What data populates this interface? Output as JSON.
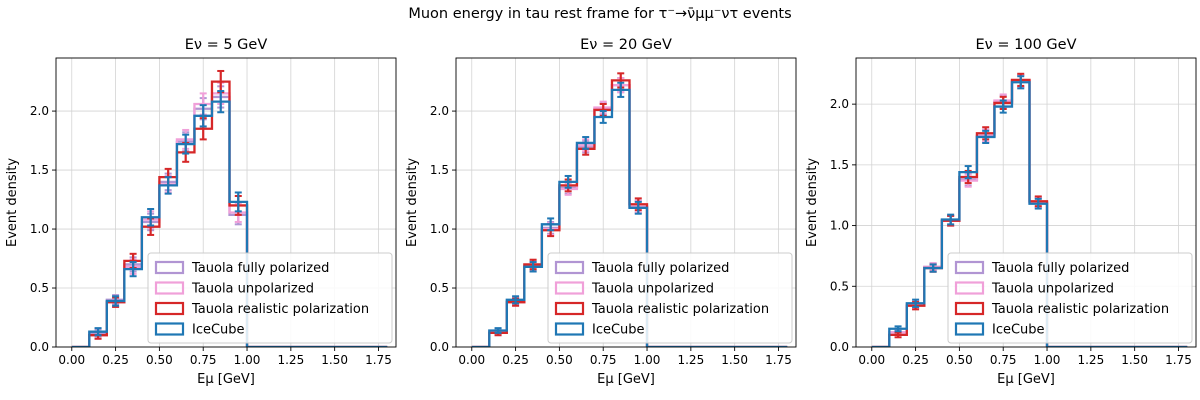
{
  "figure": {
    "suptitle": "Muon energy in tau rest frame for τ⁻→ν̄μμ⁻ντ events"
  },
  "chart_data": [
    {
      "type": "histogram",
      "title": "Eν = 5 GeV",
      "xlabel": "Eμ [GeV]",
      "ylabel": "Event density",
      "xlim": [
        -0.09,
        1.85
      ],
      "ylim": [
        0,
        2.45
      ],
      "xticks": [
        "0.00",
        "0.25",
        "0.50",
        "0.75",
        "1.00",
        "1.25",
        "1.50",
        "1.75"
      ],
      "yticks": [
        "0.0",
        "0.5",
        "1.0",
        "1.5",
        "2.0"
      ],
      "grid": true,
      "legend_position": "lower-right",
      "bin_edges": [
        0.0,
        0.1,
        0.2,
        0.3,
        0.4,
        0.5,
        0.6,
        0.7,
        0.8,
        0.9,
        1.0,
        1.1,
        1.2,
        1.3,
        1.4,
        1.5,
        1.6,
        1.7,
        1.8
      ],
      "series": [
        {
          "name": "Tauola fully polarized",
          "color": "#b195d3",
          "values": [
            0,
            0.12,
            0.4,
            0.7,
            1.06,
            1.4,
            1.74,
            2.02,
            2.12,
            1.12,
            0,
            0,
            0,
            0,
            0,
            0,
            0,
            0
          ],
          "errors": [
            0,
            0.03,
            0.04,
            0.06,
            0.07,
            0.07,
            0.08,
            0.09,
            0.09,
            0.08,
            0,
            0,
            0,
            0,
            0,
            0,
            0,
            0
          ]
        },
        {
          "name": "Tauola unpolarized",
          "color": "#f0a0d9",
          "values": [
            0,
            0.1,
            0.38,
            0.68,
            1.08,
            1.38,
            1.76,
            2.06,
            2.15,
            1.14,
            0,
            0,
            0,
            0,
            0,
            0,
            0,
            0
          ],
          "errors": [
            0,
            0.03,
            0.04,
            0.06,
            0.07,
            0.07,
            0.08,
            0.09,
            0.09,
            0.08,
            0,
            0,
            0,
            0,
            0,
            0,
            0,
            0
          ]
        },
        {
          "name": "Tauola realistic polarization",
          "color": "#d62728",
          "values": [
            0,
            0.1,
            0.38,
            0.73,
            1.02,
            1.44,
            1.65,
            1.85,
            2.25,
            1.2,
            0,
            0,
            0,
            0,
            0,
            0,
            0,
            0
          ],
          "errors": [
            0,
            0.03,
            0.04,
            0.06,
            0.07,
            0.07,
            0.08,
            0.09,
            0.09,
            0.08,
            0,
            0,
            0,
            0,
            0,
            0,
            0,
            0
          ]
        },
        {
          "name": "IceCube",
          "color": "#1f77b4",
          "values": [
            0,
            0.13,
            0.39,
            0.66,
            1.1,
            1.37,
            1.72,
            1.96,
            2.08,
            1.23,
            0,
            0,
            0,
            0,
            0,
            0,
            0,
            0
          ],
          "errors": [
            0,
            0.03,
            0.04,
            0.06,
            0.07,
            0.07,
            0.08,
            0.09,
            0.09,
            0.08,
            0,
            0,
            0,
            0,
            0,
            0,
            0,
            0
          ]
        }
      ]
    },
    {
      "type": "histogram",
      "title": "Eν = 20 GeV",
      "xlabel": "Eμ [GeV]",
      "ylabel": "Event density",
      "xlim": [
        -0.09,
        1.85
      ],
      "ylim": [
        0,
        2.45
      ],
      "xticks": [
        "0.00",
        "0.25",
        "0.50",
        "0.75",
        "1.00",
        "1.25",
        "1.50",
        "1.75"
      ],
      "yticks": [
        "0.0",
        "0.5",
        "1.0",
        "1.5",
        "2.0"
      ],
      "grid": true,
      "legend_position": "lower-right",
      "bin_edges": [
        0.0,
        0.1,
        0.2,
        0.3,
        0.4,
        0.5,
        0.6,
        0.7,
        0.8,
        0.9,
        1.0,
        1.1,
        1.2,
        1.3,
        1.4,
        1.5,
        1.6,
        1.7,
        1.8
      ],
      "series": [
        {
          "name": "Tauola fully polarized",
          "color": "#b195d3",
          "values": [
            0,
            0.13,
            0.39,
            0.69,
            1.01,
            1.35,
            1.7,
            2.02,
            2.22,
            1.19,
            0,
            0,
            0,
            0,
            0,
            0,
            0,
            0
          ],
          "errors": [
            0,
            0.02,
            0.03,
            0.04,
            0.05,
            0.05,
            0.05,
            0.05,
            0.06,
            0.05,
            0,
            0,
            0,
            0,
            0,
            0,
            0,
            0
          ]
        },
        {
          "name": "Tauola unpolarized",
          "color": "#f0a0d9",
          "values": [
            0,
            0.12,
            0.38,
            0.68,
            1.0,
            1.34,
            1.71,
            2.03,
            2.22,
            1.19,
            0,
            0,
            0,
            0,
            0,
            0,
            0,
            0
          ],
          "errors": [
            0,
            0.02,
            0.03,
            0.04,
            0.05,
            0.05,
            0.05,
            0.05,
            0.06,
            0.05,
            0,
            0,
            0,
            0,
            0,
            0,
            0,
            0
          ]
        },
        {
          "name": "Tauola realistic polarization",
          "color": "#d62728",
          "values": [
            0,
            0.12,
            0.38,
            0.7,
            0.99,
            1.37,
            1.68,
            2.01,
            2.26,
            1.21,
            0,
            0,
            0,
            0,
            0,
            0,
            0,
            0
          ],
          "errors": [
            0,
            0.02,
            0.03,
            0.04,
            0.05,
            0.05,
            0.05,
            0.05,
            0.06,
            0.05,
            0,
            0,
            0,
            0,
            0,
            0,
            0,
            0
          ]
        },
        {
          "name": "IceCube",
          "color": "#1f77b4",
          "values": [
            0,
            0.14,
            0.4,
            0.68,
            1.04,
            1.4,
            1.73,
            1.95,
            2.18,
            1.18,
            0,
            0,
            0,
            0,
            0,
            0,
            0,
            0
          ],
          "errors": [
            0,
            0.02,
            0.03,
            0.04,
            0.05,
            0.05,
            0.05,
            0.05,
            0.06,
            0.05,
            0,
            0,
            0,
            0,
            0,
            0,
            0,
            0
          ]
        }
      ]
    },
    {
      "type": "histogram",
      "title": "Eν = 100 GeV",
      "xlabel": "Eμ [GeV]",
      "ylabel": "Event density",
      "xlim": [
        -0.09,
        1.85
      ],
      "ylim": [
        0,
        2.38
      ],
      "xticks": [
        "0.00",
        "0.25",
        "0.50",
        "0.75",
        "1.00",
        "1.25",
        "1.50",
        "1.75"
      ],
      "yticks": [
        "0.0",
        "0.5",
        "1.0",
        "1.5",
        "2.0"
      ],
      "grid": true,
      "legend_position": "lower-right",
      "bin_edges": [
        0.0,
        0.1,
        0.2,
        0.3,
        0.4,
        0.5,
        0.6,
        0.7,
        0.8,
        0.9,
        1.0,
        1.1,
        1.2,
        1.3,
        1.4,
        1.5,
        1.6,
        1.7,
        1.8
      ],
      "series": [
        {
          "name": "Tauola fully polarized",
          "color": "#b195d3",
          "values": [
            0,
            0.12,
            0.35,
            0.66,
            1.04,
            1.38,
            1.74,
            2.02,
            2.19,
            1.19,
            0,
            0,
            0,
            0,
            0,
            0,
            0,
            0
          ],
          "errors": [
            0,
            0.02,
            0.03,
            0.03,
            0.04,
            0.05,
            0.05,
            0.05,
            0.05,
            0.04,
            0,
            0,
            0,
            0,
            0,
            0,
            0,
            0
          ]
        },
        {
          "name": "Tauola unpolarized",
          "color": "#f0a0d9",
          "values": [
            0,
            0.12,
            0.35,
            0.66,
            1.04,
            1.37,
            1.74,
            2.03,
            2.19,
            1.19,
            0,
            0,
            0,
            0,
            0,
            0,
            0,
            0
          ],
          "errors": [
            0,
            0.02,
            0.03,
            0.03,
            0.04,
            0.05,
            0.05,
            0.05,
            0.05,
            0.04,
            0,
            0,
            0,
            0,
            0,
            0,
            0,
            0
          ]
        },
        {
          "name": "Tauola realistic polarization",
          "color": "#d62728",
          "values": [
            0,
            0.1,
            0.34,
            0.65,
            1.04,
            1.4,
            1.76,
            2.01,
            2.2,
            1.2,
            0,
            0,
            0,
            0,
            0,
            0,
            0,
            0
          ],
          "errors": [
            0,
            0.02,
            0.03,
            0.03,
            0.04,
            0.05,
            0.05,
            0.05,
            0.05,
            0.04,
            0,
            0,
            0,
            0,
            0,
            0,
            0,
            0
          ]
        },
        {
          "name": "IceCube",
          "color": "#1f77b4",
          "values": [
            0,
            0.15,
            0.36,
            0.65,
            1.05,
            1.44,
            1.73,
            1.98,
            2.18,
            1.18,
            0,
            0,
            0,
            0,
            0,
            0,
            0,
            0
          ],
          "errors": [
            0,
            0.02,
            0.03,
            0.03,
            0.04,
            0.05,
            0.05,
            0.05,
            0.05,
            0.04,
            0,
            0,
            0,
            0,
            0,
            0,
            0,
            0
          ]
        }
      ]
    }
  ]
}
